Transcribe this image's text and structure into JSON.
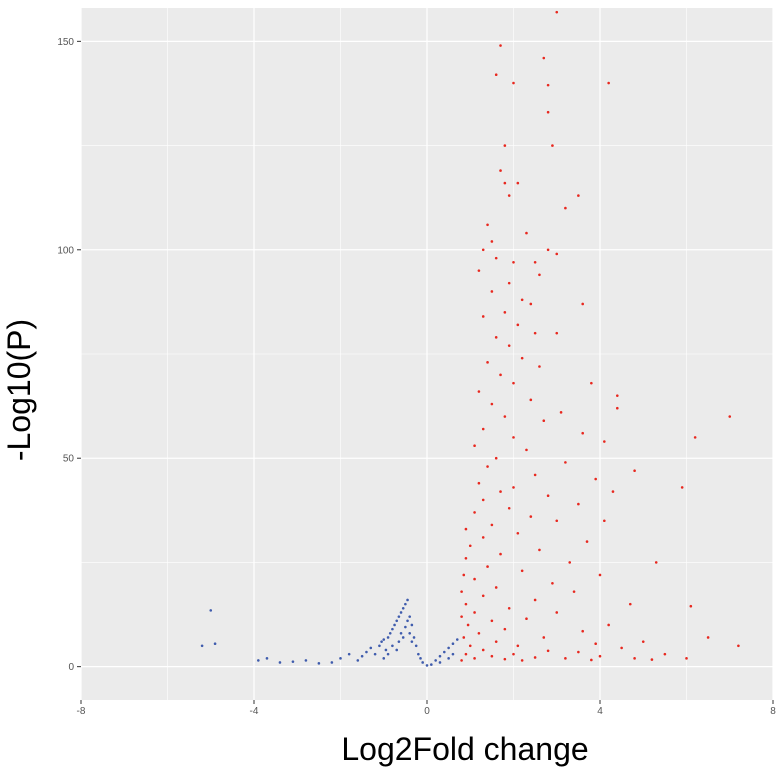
{
  "chart_data": {
    "type": "scatter",
    "title": "",
    "xlabel": "Log2Fold change",
    "ylabel": "-Log10(P)",
    "xlim": [
      -8,
      8
    ],
    "ylim": [
      -8,
      158
    ],
    "xticks": [
      -8,
      -4,
      0,
      4,
      8
    ],
    "xtick_labels": [
      "-8",
      "-4",
      "0",
      "4",
      "8"
    ],
    "yticks": [
      0,
      50,
      100,
      150
    ],
    "ytick_labels": [
      "0",
      "50",
      "100",
      "150"
    ],
    "grid": true,
    "legend": "none",
    "colors": {
      "panel": "#ebebeb",
      "grid": "#ffffff",
      "significant": "#e8281f",
      "not_significant": "#3f5cad"
    },
    "series": [
      {
        "points": [
          [
            -5.2,
            5
          ],
          [
            -5.0,
            13.5
          ],
          [
            -4.9,
            5.5
          ],
          [
            -3.9,
            1.5
          ],
          [
            -3.7,
            2
          ],
          [
            -3.4,
            1
          ],
          [
            -3.1,
            1.2
          ],
          [
            -2.8,
            1.5
          ],
          [
            -2.5,
            0.8
          ],
          [
            -2.2,
            1
          ],
          [
            -2.0,
            2
          ],
          [
            -1.8,
            3
          ],
          [
            -1.6,
            1.5
          ],
          [
            -1.5,
            2.5
          ],
          [
            -1.4,
            3.5
          ],
          [
            -1.3,
            4.5
          ],
          [
            -1.2,
            3
          ],
          [
            -1.1,
            5
          ],
          [
            -1.05,
            6
          ],
          [
            -1.0,
            6.5
          ],
          [
            -0.95,
            4
          ],
          [
            -0.9,
            7
          ],
          [
            -0.85,
            8
          ],
          [
            -0.8,
            9
          ],
          [
            -0.75,
            10
          ],
          [
            -0.7,
            11
          ],
          [
            -0.65,
            12
          ],
          [
            -0.6,
            13
          ],
          [
            -0.55,
            14
          ],
          [
            -0.5,
            15
          ],
          [
            -0.45,
            16
          ],
          [
            -0.6,
            8
          ],
          [
            -0.5,
            9.5
          ],
          [
            -0.4,
            12
          ],
          [
            -0.4,
            8
          ],
          [
            -0.35,
            10
          ],
          [
            -0.3,
            7
          ],
          [
            -0.25,
            5
          ],
          [
            -0.2,
            3
          ],
          [
            -0.15,
            2
          ],
          [
            -0.1,
            1
          ],
          [
            0.0,
            0.3
          ],
          [
            0.1,
            0.5
          ],
          [
            0.2,
            1.5
          ],
          [
            0.3,
            2.5
          ],
          [
            0.4,
            3.5
          ],
          [
            0.5,
            4.5
          ],
          [
            0.6,
            5.5
          ],
          [
            0.7,
            6.5
          ],
          [
            0.5,
            2
          ],
          [
            0.6,
            3
          ],
          [
            0.3,
            1
          ],
          [
            -0.7,
            4
          ],
          [
            -0.9,
            3
          ],
          [
            -1.0,
            2
          ],
          [
            -0.8,
            5
          ],
          [
            -0.65,
            6
          ],
          [
            -0.55,
            7
          ],
          [
            -0.45,
            11
          ],
          [
            -0.35,
            6
          ]
        ]
      },
      {
        "points": [
          [
            3.0,
            157
          ],
          [
            1.7,
            149
          ],
          [
            2.7,
            146
          ],
          [
            1.6,
            142
          ],
          [
            2.0,
            140
          ],
          [
            2.8,
            139.5
          ],
          [
            4.2,
            140
          ],
          [
            2.8,
            133
          ],
          [
            1.8,
            125
          ],
          [
            2.9,
            125
          ],
          [
            1.7,
            119
          ],
          [
            2.1,
            116
          ],
          [
            1.8,
            116
          ],
          [
            3.5,
            113
          ],
          [
            3.2,
            110
          ],
          [
            1.9,
            113
          ],
          [
            1.4,
            106
          ],
          [
            2.3,
            104
          ],
          [
            1.5,
            102
          ],
          [
            2.8,
            100
          ],
          [
            3.0,
            99
          ],
          [
            1.3,
            100
          ],
          [
            1.6,
            98
          ],
          [
            2.0,
            97
          ],
          [
            2.5,
            97
          ],
          [
            1.2,
            95
          ],
          [
            2.6,
            94
          ],
          [
            1.9,
            92
          ],
          [
            1.5,
            90
          ],
          [
            2.2,
            88
          ],
          [
            3.6,
            87
          ],
          [
            2.4,
            87
          ],
          [
            1.8,
            85
          ],
          [
            1.3,
            84
          ],
          [
            2.1,
            82
          ],
          [
            2.5,
            80
          ],
          [
            1.6,
            79
          ],
          [
            3.0,
            80
          ],
          [
            1.9,
            77
          ],
          [
            2.2,
            74
          ],
          [
            1.4,
            73
          ],
          [
            2.6,
            72
          ],
          [
            1.7,
            70
          ],
          [
            3.8,
            68
          ],
          [
            2.0,
            68
          ],
          [
            1.2,
            66
          ],
          [
            2.4,
            64
          ],
          [
            1.5,
            63
          ],
          [
            4.4,
            65
          ],
          [
            4.4,
            62
          ],
          [
            3.1,
            61
          ],
          [
            1.8,
            60
          ],
          [
            2.7,
            59
          ],
          [
            1.3,
            57
          ],
          [
            3.6,
            56
          ],
          [
            7.0,
            60
          ],
          [
            6.2,
            55
          ],
          [
            4.1,
            54
          ],
          [
            2.0,
            55
          ],
          [
            1.1,
            53
          ],
          [
            2.3,
            52
          ],
          [
            1.6,
            50
          ],
          [
            3.2,
            49
          ],
          [
            1.4,
            48
          ],
          [
            4.8,
            47
          ],
          [
            2.5,
            46
          ],
          [
            3.9,
            45
          ],
          [
            1.2,
            44
          ],
          [
            2.0,
            43
          ],
          [
            5.9,
            43
          ],
          [
            1.7,
            42
          ],
          [
            4.3,
            42
          ],
          [
            2.8,
            41
          ],
          [
            1.3,
            40
          ],
          [
            3.5,
            39
          ],
          [
            1.9,
            38
          ],
          [
            1.1,
            37
          ],
          [
            2.4,
            36
          ],
          [
            3.0,
            35
          ],
          [
            1.5,
            34
          ],
          [
            4.1,
            35
          ],
          [
            0.9,
            33
          ],
          [
            2.1,
            32
          ],
          [
            1.3,
            31
          ],
          [
            3.7,
            30
          ],
          [
            1.0,
            29
          ],
          [
            2.6,
            28
          ],
          [
            1.7,
            27
          ],
          [
            0.9,
            26
          ],
          [
            3.3,
            25
          ],
          [
            5.3,
            25
          ],
          [
            1.4,
            24
          ],
          [
            2.2,
            23
          ],
          [
            0.85,
            22
          ],
          [
            4.0,
            22
          ],
          [
            1.1,
            21
          ],
          [
            2.9,
            20
          ],
          [
            1.6,
            19
          ],
          [
            0.8,
            18
          ],
          [
            3.4,
            18
          ],
          [
            1.3,
            17
          ],
          [
            2.5,
            16
          ],
          [
            0.9,
            15
          ],
          [
            4.7,
            15
          ],
          [
            1.9,
            14
          ],
          [
            1.1,
            13
          ],
          [
            3.0,
            13
          ],
          [
            6.1,
            14.5
          ],
          [
            0.8,
            12
          ],
          [
            2.3,
            11.5
          ],
          [
            1.5,
            11
          ],
          [
            4.2,
            10
          ],
          [
            0.95,
            10
          ],
          [
            1.8,
            9
          ],
          [
            3.6,
            8.5
          ],
          [
            1.2,
            8
          ],
          [
            2.7,
            7
          ],
          [
            0.85,
            7
          ],
          [
            6.5,
            7
          ],
          [
            5.0,
            6
          ],
          [
            1.6,
            6
          ],
          [
            3.9,
            5.5
          ],
          [
            2.1,
            5
          ],
          [
            1.0,
            5
          ],
          [
            7.2,
            5
          ],
          [
            4.5,
            4.5
          ],
          [
            1.3,
            4
          ],
          [
            2.8,
            3.8
          ],
          [
            3.5,
            3.5
          ],
          [
            0.9,
            3
          ],
          [
            2.0,
            3
          ],
          [
            5.5,
            3
          ],
          [
            1.5,
            2.5
          ],
          [
            4.0,
            2.5
          ],
          [
            2.5,
            2.2
          ],
          [
            3.2,
            2
          ],
          [
            1.1,
            2
          ],
          [
            6.0,
            2
          ],
          [
            4.8,
            2
          ],
          [
            1.8,
            1.8
          ],
          [
            3.8,
            1.6
          ],
          [
            2.2,
            1.5
          ],
          [
            0.8,
            1.5
          ],
          [
            5.2,
            1.7
          ]
        ]
      }
    ]
  }
}
